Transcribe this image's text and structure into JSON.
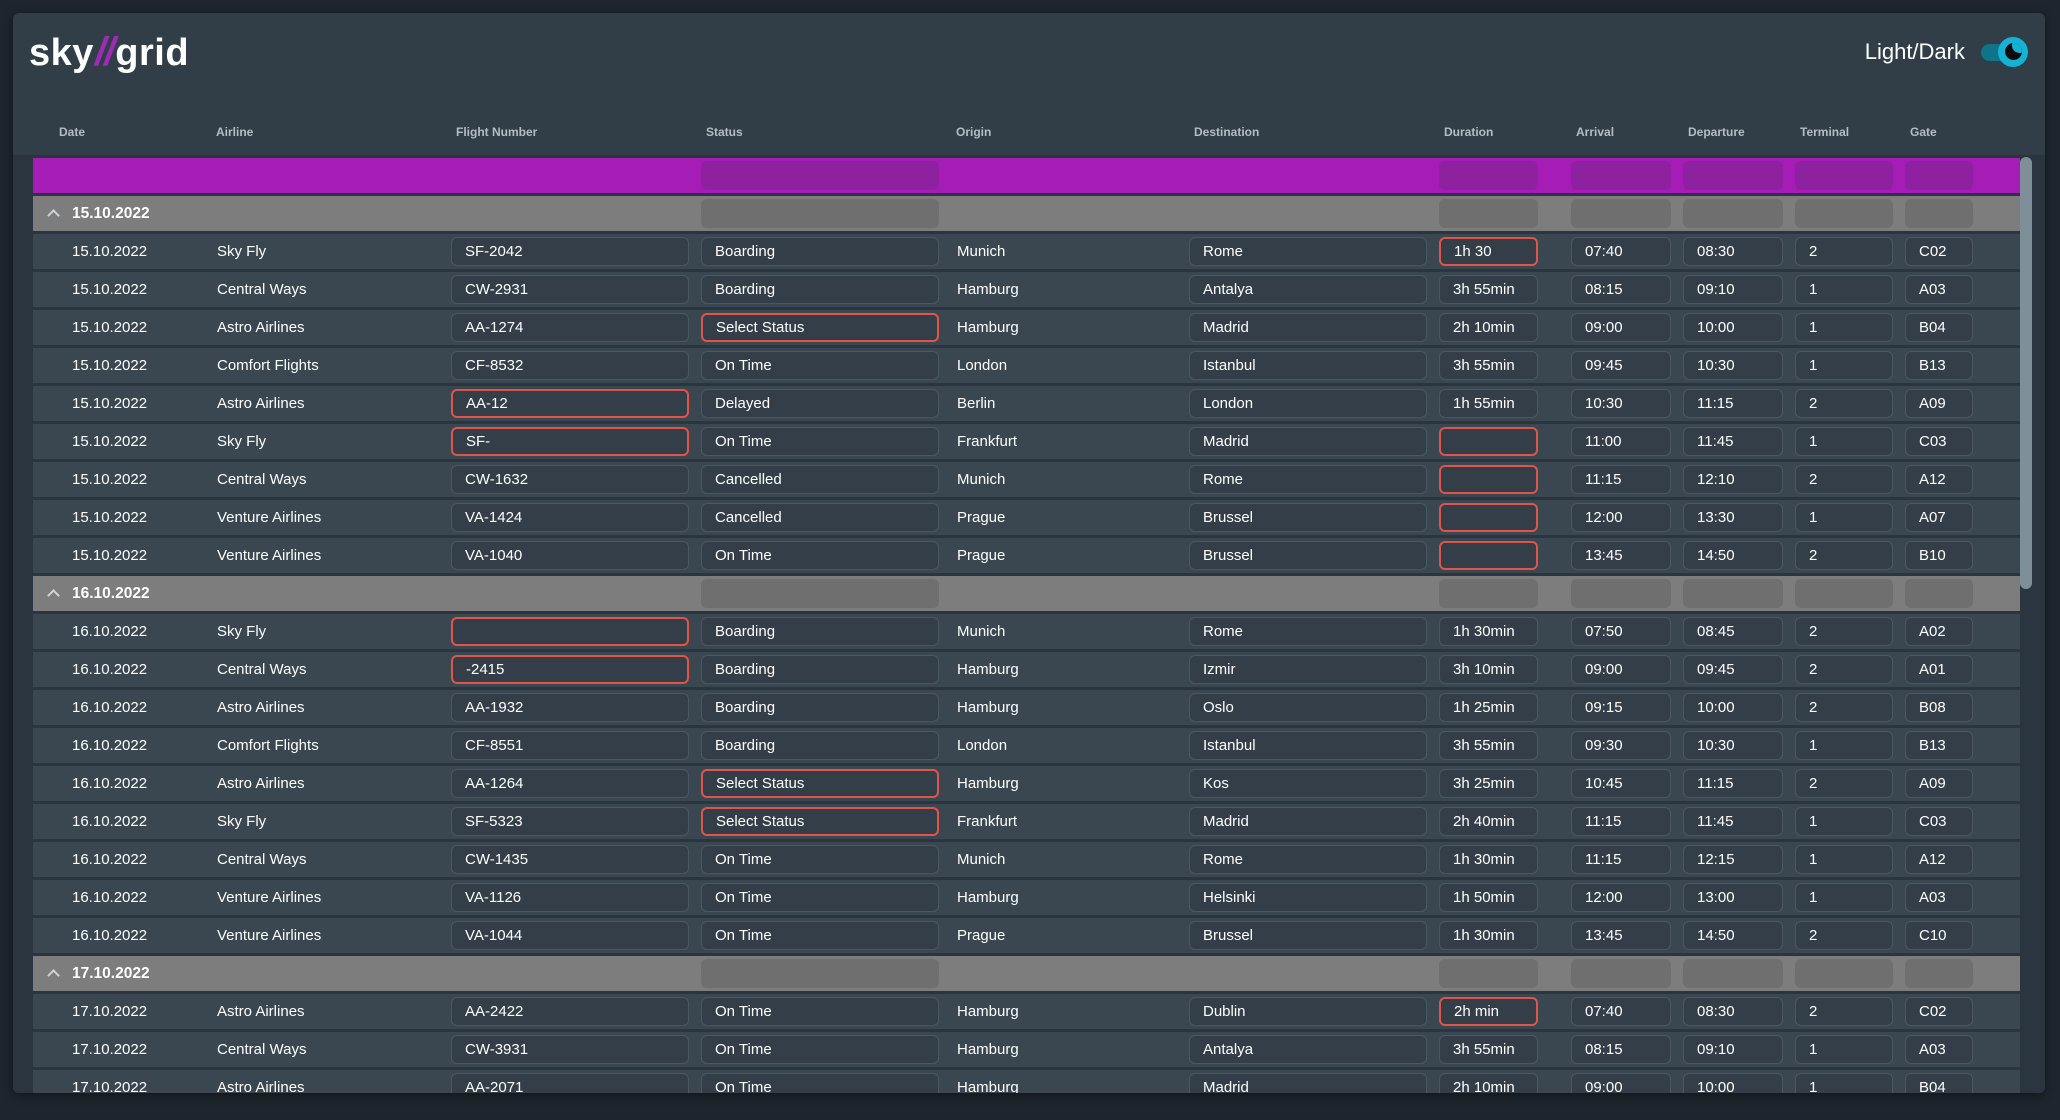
{
  "app": {
    "logo": {
      "part1": "sky",
      "slashes": "//",
      "part2": "grid"
    },
    "theme_toggle_label": "Light/Dark"
  },
  "table": {
    "columns": [
      {
        "key": "date",
        "label": "Date"
      },
      {
        "key": "airline",
        "label": "Airline"
      },
      {
        "key": "flight",
        "label": "Flight Number"
      },
      {
        "key": "status",
        "label": "Status"
      },
      {
        "key": "origin",
        "label": "Origin"
      },
      {
        "key": "destination",
        "label": "Destination"
      },
      {
        "key": "duration",
        "label": "Duration"
      },
      {
        "key": "arrival",
        "label": "Arrival"
      },
      {
        "key": "departure",
        "label": "Departure"
      },
      {
        "key": "terminal",
        "label": "Terminal"
      },
      {
        "key": "gate",
        "label": "Gate"
      }
    ],
    "groups": [
      {
        "date": "15.10.2022",
        "rows": [
          {
            "date": "15.10.2022",
            "airline": "Sky Fly",
            "flight": "SF-2042",
            "status": "Boarding",
            "origin": "Munich",
            "destination": "Rome",
            "duration": "1h 30",
            "duration_error": true,
            "arrival": "07:40",
            "departure": "08:30",
            "terminal": "2",
            "gate": "C02"
          },
          {
            "date": "15.10.2022",
            "airline": "Central Ways",
            "flight": "CW-2931",
            "status": "Boarding",
            "origin": "Hamburg",
            "destination": "Antalya",
            "duration": "3h 55min",
            "arrival": "08:15",
            "departure": "09:10",
            "terminal": "1",
            "gate": "A03"
          },
          {
            "date": "15.10.2022",
            "airline": "Astro Airlines",
            "flight": "AA-1274",
            "status": "Select Status",
            "status_error": true,
            "origin": "Hamburg",
            "destination": "Madrid",
            "duration": "2h 10min",
            "arrival": "09:00",
            "departure": "10:00",
            "terminal": "1",
            "gate": "B04"
          },
          {
            "date": "15.10.2022",
            "airline": "Comfort Flights",
            "flight": "CF-8532",
            "status": "On Time",
            "origin": "London",
            "destination": "Istanbul",
            "duration": "3h 55min",
            "arrival": "09:45",
            "departure": "10:30",
            "terminal": "1",
            "gate": "B13"
          },
          {
            "date": "15.10.2022",
            "airline": "Astro Airlines",
            "flight": "AA-12",
            "flight_error": true,
            "status": "Delayed",
            "origin": "Berlin",
            "destination": "London",
            "duration": "1h 55min",
            "arrival": "10:30",
            "departure": "11:15",
            "terminal": "2",
            "gate": "A09"
          },
          {
            "date": "15.10.2022",
            "airline": "Sky Fly",
            "flight": "SF-",
            "flight_error": true,
            "status": "On Time",
            "origin": "Frankfurt",
            "destination": "Madrid",
            "duration": "",
            "duration_error": true,
            "arrival": "11:00",
            "departure": "11:45",
            "terminal": "1",
            "gate": "C03"
          },
          {
            "date": "15.10.2022",
            "airline": "Central Ways",
            "flight": "CW-1632",
            "status": "Cancelled",
            "origin": "Munich",
            "destination": "Rome",
            "duration": "",
            "duration_error": true,
            "arrival": "11:15",
            "departure": "12:10",
            "terminal": "2",
            "gate": "A12"
          },
          {
            "date": "15.10.2022",
            "airline": "Venture Airlines",
            "flight": "VA-1424",
            "status": "Cancelled",
            "origin": "Prague",
            "destination": "Brussel",
            "duration": "",
            "duration_error": true,
            "arrival": "12:00",
            "departure": "13:30",
            "terminal": "1",
            "gate": "A07"
          },
          {
            "date": "15.10.2022",
            "airline": "Venture Airlines",
            "flight": "VA-1040",
            "status": "On Time",
            "origin": "Prague",
            "destination": "Brussel",
            "duration": "",
            "duration_error": true,
            "arrival": "13:45",
            "departure": "14:50",
            "terminal": "2",
            "gate": "B10"
          }
        ]
      },
      {
        "date": "16.10.2022",
        "rows": [
          {
            "date": "16.10.2022",
            "airline": "Sky Fly",
            "flight": "",
            "flight_error": true,
            "status": "Boarding",
            "origin": "Munich",
            "destination": "Rome",
            "duration": "1h 30min",
            "arrival": "07:50",
            "departure": "08:45",
            "terminal": "2",
            "gate": "A02"
          },
          {
            "date": "16.10.2022",
            "airline": "Central Ways",
            "flight": "-2415",
            "flight_error": true,
            "status": "Boarding",
            "origin": "Hamburg",
            "destination": "Izmir",
            "duration": "3h 10min",
            "arrival": "09:00",
            "departure": "09:45",
            "terminal": "2",
            "gate": "A01"
          },
          {
            "date": "16.10.2022",
            "airline": "Astro Airlines",
            "flight": "AA-1932",
            "status": "Boarding",
            "origin": "Hamburg",
            "destination": "Oslo",
            "duration": "1h 25min",
            "arrival": "09:15",
            "departure": "10:00",
            "terminal": "2",
            "gate": "B08"
          },
          {
            "date": "16.10.2022",
            "airline": "Comfort Flights",
            "flight": "CF-8551",
            "status": "Boarding",
            "origin": "London",
            "destination": "Istanbul",
            "duration": "3h 55min",
            "arrival": "09:30",
            "departure": "10:30",
            "terminal": "1",
            "gate": "B13"
          },
          {
            "date": "16.10.2022",
            "airline": "Astro Airlines",
            "flight": "AA-1264",
            "status": "Select Status",
            "status_error": true,
            "origin": "Hamburg",
            "destination": "Kos",
            "duration": "3h 25min",
            "arrival": "10:45",
            "departure": "11:15",
            "terminal": "2",
            "gate": "A09"
          },
          {
            "date": "16.10.2022",
            "airline": "Sky Fly",
            "flight": "SF-5323",
            "status": "Select Status",
            "status_error": true,
            "origin": "Frankfurt",
            "destination": "Madrid",
            "duration": "2h 40min",
            "arrival": "11:15",
            "departure": "11:45",
            "terminal": "1",
            "gate": "C03"
          },
          {
            "date": "16.10.2022",
            "airline": "Central Ways",
            "flight": "CW-1435",
            "status": "On Time",
            "origin": "Munich",
            "destination": "Rome",
            "duration": "1h 30min",
            "arrival": "11:15",
            "departure": "12:15",
            "terminal": "1",
            "gate": "A12"
          },
          {
            "date": "16.10.2022",
            "airline": "Venture Airlines",
            "flight": "VA-1126",
            "status": "On Time",
            "origin": "Hamburg",
            "destination": "Helsinki",
            "duration": "1h 50min",
            "arrival": "12:00",
            "departure": "13:00",
            "terminal": "1",
            "gate": "A03"
          },
          {
            "date": "16.10.2022",
            "airline": "Venture Airlines",
            "flight": "VA-1044",
            "status": "On Time",
            "origin": "Prague",
            "destination": "Brussel",
            "duration": "1h 30min",
            "arrival": "13:45",
            "departure": "14:50",
            "terminal": "2",
            "gate": "C10"
          }
        ]
      },
      {
        "date": "17.10.2022",
        "rows": [
          {
            "date": "17.10.2022",
            "airline": "Astro Airlines",
            "flight": "AA-2422",
            "status": "On Time",
            "origin": "Hamburg",
            "destination": "Dublin",
            "duration": "2h min",
            "duration_error": true,
            "arrival": "07:40",
            "departure": "08:30",
            "terminal": "2",
            "gate": "C02"
          },
          {
            "date": "17.10.2022",
            "airline": "Central Ways",
            "flight": "CW-3931",
            "status": "On Time",
            "origin": "Hamburg",
            "destination": "Antalya",
            "duration": "3h 55min",
            "arrival": "08:15",
            "departure": "09:10",
            "terminal": "1",
            "gate": "A03"
          },
          {
            "date": "17.10.2022",
            "airline": "Astro Airlines",
            "flight": "AA-2071",
            "status": "On Time",
            "origin": "Hamburg",
            "destination": "Madrid",
            "duration": "2h 10min",
            "arrival": "09:00",
            "departure": "10:00",
            "terminal": "1",
            "gate": "B04"
          }
        ]
      }
    ]
  },
  "colors": {
    "page_bg": "#1d262e",
    "card_bg": "#313e48",
    "body_bg": "#2a3540",
    "row_bg": "#3a4650",
    "box_bg": "#333e48",
    "box_border": "#4b5761",
    "filter_row": "#a51cb7",
    "filter_box": "#8e21a0",
    "group_row": "#7d7d7d",
    "group_box": "#6f6f6f",
    "error_border": "#e0544a",
    "accent_purple": "#9c2bb5",
    "toggle_track": "#0e7487",
    "toggle_knob": "#14b2d4",
    "header_text": "#b4bdc3",
    "scrollbar_thumb": "#7e8f9a"
  }
}
